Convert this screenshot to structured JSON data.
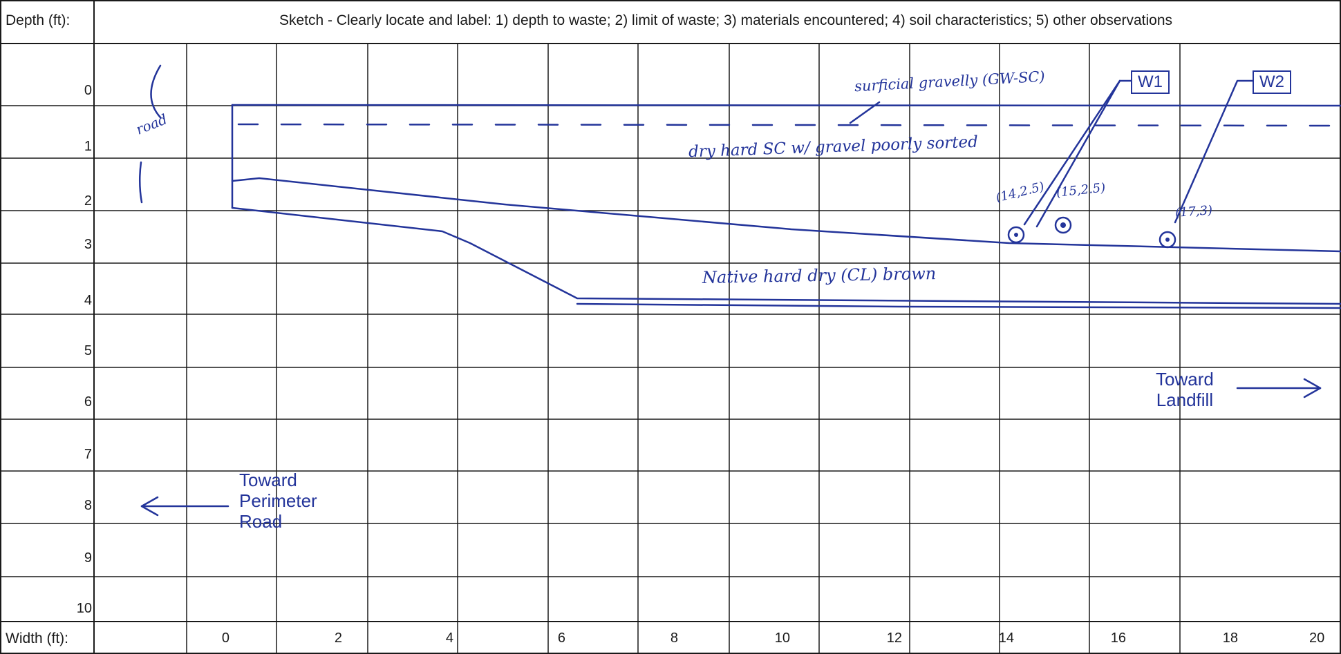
{
  "header": {
    "depth_label": "Depth (ft):",
    "sketch_label": "Sketch - Clearly locate and label: 1) depth to waste; 2) limit of waste; 3) materials encountered; 4) soil characteristics; 5) other observations"
  },
  "footer": {
    "width_label": "Width (ft):"
  },
  "depth_ticks": [
    "0",
    "1",
    "2",
    "3",
    "4",
    "5",
    "6",
    "7",
    "8",
    "9",
    "10"
  ],
  "width_ticks": [
    "0",
    "2",
    "4",
    "6",
    "8",
    "10",
    "12",
    "14",
    "16",
    "18",
    "20"
  ],
  "annotations": {
    "toward_perimeter_road": [
      "Toward",
      "Perimeter",
      "Road"
    ],
    "toward_landfill": [
      "Toward",
      "Landfill"
    ],
    "w1": "W1",
    "w2": "W2"
  },
  "handwriting": {
    "road": "road",
    "surface": "surficial gravelly (GW-SC)",
    "layer1": "dry hard SC w/ gravel poorly sorted",
    "native": "Native hard dry (CL) brown",
    "pt1": "(14,2.5)",
    "pt2": "(15,2.5)",
    "pt3": "(17,3)"
  },
  "colors": {
    "ink": "#23349a",
    "grid": "#1a1a1a"
  }
}
